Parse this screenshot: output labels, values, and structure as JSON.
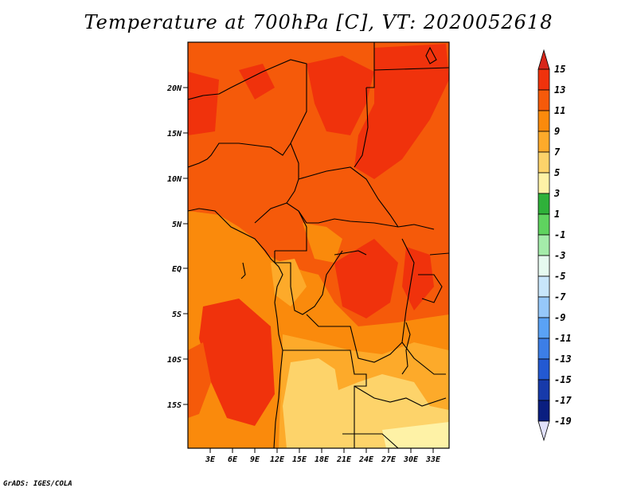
{
  "title": "Temperature at 700hPa [C], VT: 2020052618",
  "credit": "GrADS: IGES/COLA",
  "map": {
    "lat_ticks": [
      "20N",
      "15N",
      "10N",
      "5N",
      "EQ",
      "5S",
      "10S",
      "15S"
    ],
    "lon_ticks": [
      "3E",
      "6E",
      "9E",
      "12E",
      "15E",
      "18E",
      "21E",
      "24E",
      "27E",
      "30E",
      "33E"
    ]
  },
  "colorbar": {
    "labels": [
      "15",
      "13",
      "11",
      "9",
      "7",
      "5",
      "3",
      "1",
      "-1",
      "-3",
      "-5",
      "-7",
      "-9",
      "-11",
      "-13",
      "-15",
      "-17",
      "-19"
    ],
    "colors": {
      "above_15": "#d8261a",
      "13_15": "#f0320c",
      "11_13": "#f55a0a",
      "9_11": "#fa8a0c",
      "7_9": "#fdaa2a",
      "5_7": "#fdd36a",
      "3_5": "#fef2a6",
      "1_3": "#2fb13a",
      "-1_1": "#5fd35f",
      "-3_-1": "#a4ecaa",
      "-5_-3": "#e6faf0",
      "-7_-5": "#c8e6fb",
      "-9_-7": "#96c8fa",
      "-11_-9": "#5aa2f5",
      "-13_-11": "#3c7ee6",
      "-15_-13": "#2359d2",
      "-17_-15": "#173aaa",
      "-19_-17": "#0a1e80",
      "below_-19": "#e1e1fa"
    }
  }
}
